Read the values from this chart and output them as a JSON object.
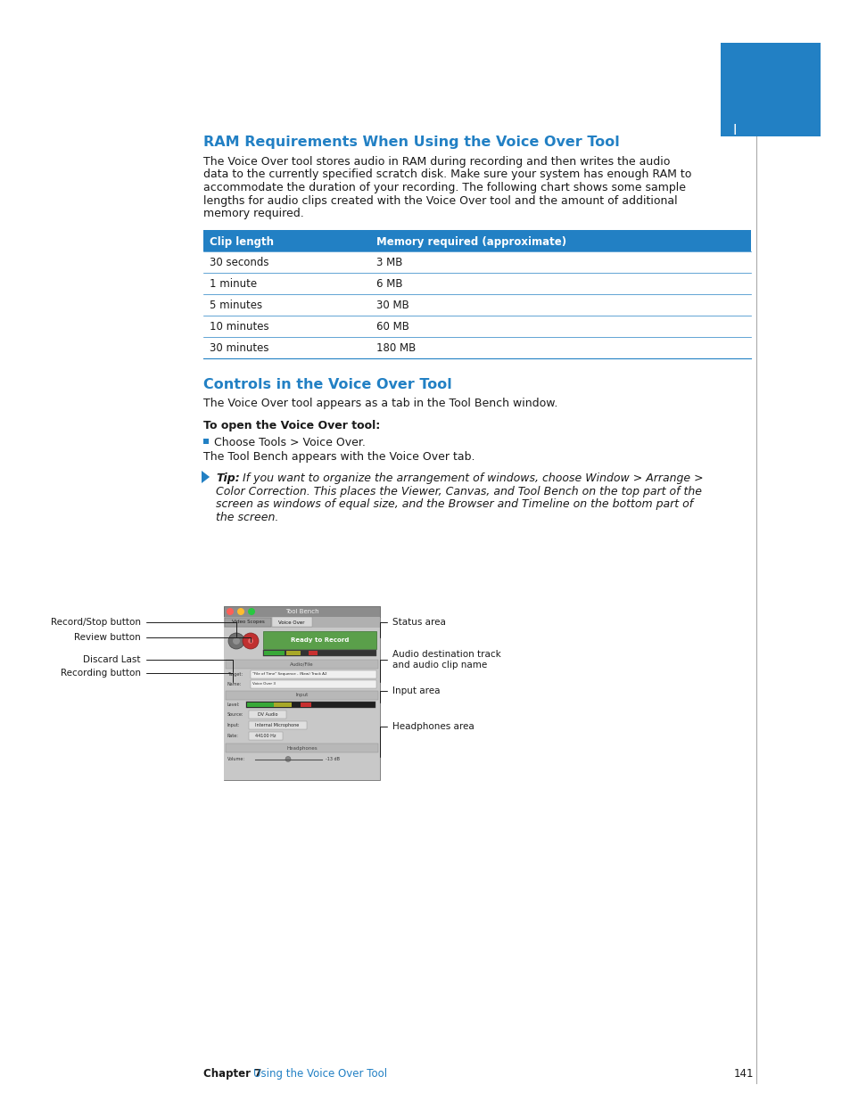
{
  "page_bg": "#ffffff",
  "blue_rect_color": "#2280c4",
  "tab_letter": "I",
  "tab_letter_color": "#ffffff",
  "section1_title": "RAM Requirements When Using the Voice Over Tool",
  "section1_title_color": "#2280c4",
  "section1_body1": "The Voice Over tool stores audio in RAM during recording and then writes the audio",
  "section1_body2": "data to the currently specified scratch disk. Make sure your system has enough RAM to",
  "section1_body3": "accommodate the duration of your recording. The following chart shows some sample",
  "section1_body4": "lengths for audio clips created with the Voice Over tool and the amount of additional",
  "section1_body5": "memory required.",
  "table_header_bg": "#2280c4",
  "table_header_color": "#ffffff",
  "table_col1_header": "Clip length",
  "table_col2_header": "Memory required (approximate)",
  "table_rows": [
    [
      "30 seconds",
      "3 MB"
    ],
    [
      "1 minute",
      "6 MB"
    ],
    [
      "5 minutes",
      "30 MB"
    ],
    [
      "10 minutes",
      "60 MB"
    ],
    [
      "30 minutes",
      "180 MB"
    ]
  ],
  "table_line_color": "#2280c4",
  "section2_title": "Controls in the Voice Over Tool",
  "section2_title_color": "#2280c4",
  "section2_body": "The Voice Over tool appears as a tab in the Tool Bench window.",
  "subsection_bold": "To open the Voice Over tool:",
  "bullet_text": "Choose Tools > Voice Over.",
  "bullet_follow": "The Tool Bench appears with the Voice Over tab.",
  "tip_bold": "Tip:",
  "tip_rest1": "  If you want to organize the arrangement of windows, choose Window > Arrange >",
  "tip_rest2": "Color Correction. This places the Viewer, Canvas, and Tool Bench on the top part of the",
  "tip_rest3": "screen as windows of equal size, and the Browser and Timeline on the bottom part of",
  "tip_rest4": "the screen.",
  "left_labels": [
    "Record/Stop button",
    "Review button",
    "Discard Last",
    "Recording button"
  ],
  "right_labels": [
    "Status area",
    "Audio destination track\nand audio clip name",
    "Input area",
    "Headphones area"
  ],
  "footer_chapter": "Chapter 7",
  "footer_section": "Using the Voice Over Tool",
  "footer_page": "141",
  "footer_color": "#2280c4",
  "body_font_size": 9.0,
  "title_font_size": 11.5,
  "table_font_size": 8.5,
  "footer_font_size": 8.5
}
